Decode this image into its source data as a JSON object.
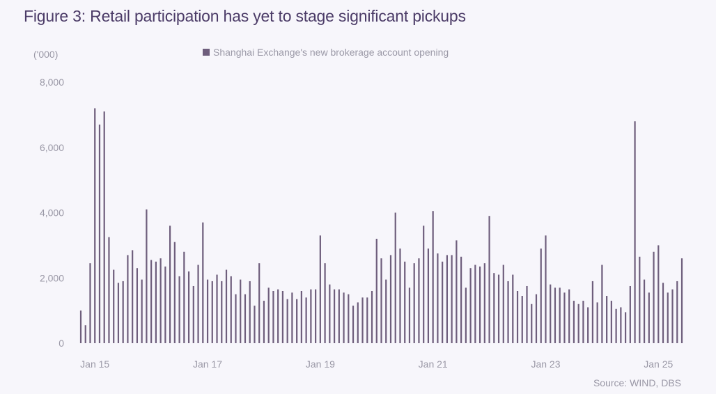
{
  "title": "Figure 3: Retail participation has yet to stage significant pickups",
  "source": "Source: WIND, DBS",
  "chart_data": {
    "type": "bar",
    "unit": "('000)",
    "ylim": [
      0,
      8000
    ],
    "yticks": [
      0,
      2000,
      4000,
      6000,
      8000
    ],
    "ytick_labels": [
      "0",
      "2,000",
      "4,000",
      "6,000",
      "8,000"
    ],
    "xtick_labels": [
      "Jan 15",
      "Jan 17",
      "Jan 19",
      "Jan 21",
      "Jan 23",
      "Jan 25"
    ],
    "xtick_bar_index": [
      3,
      27,
      51,
      75,
      99,
      123
    ],
    "grid": false,
    "legend_position": "top-center",
    "series": [
      {
        "name": "Shanghai Exchange's new brokerage account opening",
        "color": "#6e5e7c",
        "values": [
          1000,
          550,
          2450,
          7200,
          6700,
          7100,
          3250,
          2250,
          1850,
          1900,
          2700,
          2850,
          2300,
          1950,
          4100,
          2550,
          2500,
          2600,
          2350,
          3600,
          3100,
          2050,
          2800,
          2200,
          1750,
          2400,
          3700,
          1950,
          1900,
          2100,
          1900,
          2250,
          2050,
          1500,
          1950,
          1500,
          1900,
          1150,
          2450,
          1300,
          1700,
          1600,
          1650,
          1600,
          1350,
          1550,
          1350,
          1600,
          1400,
          1650,
          1650,
          3300,
          2450,
          1800,
          1650,
          1650,
          1550,
          1500,
          1150,
          1250,
          1400,
          1400,
          1600,
          3200,
          2600,
          1950,
          2700,
          4000,
          2900,
          2500,
          1700,
          2450,
          2600,
          3600,
          2900,
          4050,
          2750,
          2500,
          2700,
          2700,
          3150,
          2650,
          1700,
          2300,
          2400,
          2350,
          2450,
          3900,
          2150,
          2100,
          2400,
          1900,
          2100,
          1600,
          1450,
          1750,
          1200,
          1500,
          2900,
          3300,
          1800,
          1700,
          1700,
          1550,
          1650,
          1300,
          1200,
          1300,
          1100,
          1900,
          1250,
          2400,
          1450,
          1300,
          1050,
          1100,
          950,
          1750,
          6800,
          2650,
          1950,
          1550,
          2800,
          3000,
          1850,
          1550,
          1650,
          1900,
          2600
        ]
      }
    ]
  }
}
